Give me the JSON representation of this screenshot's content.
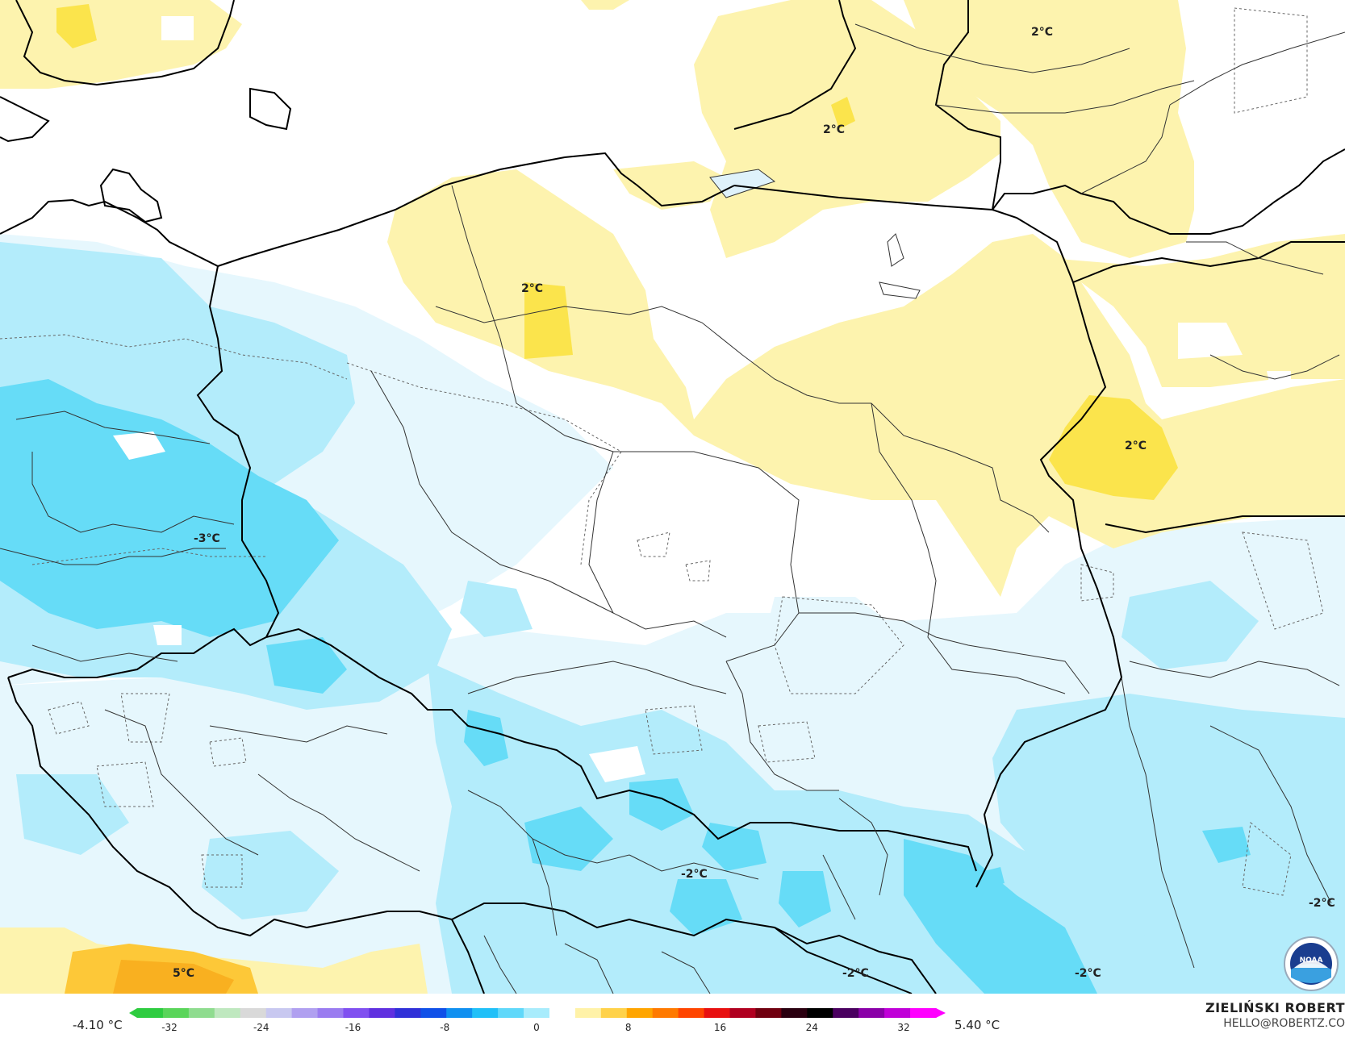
{
  "map": {
    "labels": [
      {
        "id": "lbl-nw-neg3",
        "text": "-3°C"
      },
      {
        "id": "lbl-pomerania-2",
        "text": "2°C"
      },
      {
        "id": "lbl-kaliningrad-2",
        "text": "2°C"
      },
      {
        "id": "lbl-lithuania-2",
        "text": "2°C"
      },
      {
        "id": "lbl-belarus-2",
        "text": "2°C"
      },
      {
        "id": "lbl-sw-5",
        "text": "5°C"
      },
      {
        "id": "lbl-carpath-neg2",
        "text": "-2°C"
      },
      {
        "id": "lbl-hungary-neg2",
        "text": "-2°C"
      },
      {
        "id": "lbl-ukr-neg2",
        "text": "-2°C"
      },
      {
        "id": "lbl-east-neg2",
        "text": "-2°C"
      }
    ]
  },
  "legend": {
    "min_value": "-4.10 °C",
    "max_value": "5.40 °C",
    "ticks": [
      "-32",
      "-24",
      "-16",
      "-8",
      "0",
      "8",
      "16",
      "24",
      "32"
    ],
    "colors": [
      "#2ecc40",
      "#5ad55a",
      "#8fdc8f",
      "#bfe8bf",
      "#d9d9d9",
      "#c8c8f0",
      "#b0a0f0",
      "#9a7cf0",
      "#8050f0",
      "#6030e0",
      "#3030d8",
      "#1050e8",
      "#1090f0",
      "#20c0f8",
      "#60d8fa",
      "#a8ecfc",
      "#ffffff",
      "#fff2a8",
      "#ffd24a",
      "#ffa500",
      "#ff7a00",
      "#ff4500",
      "#e81010",
      "#b00020",
      "#700010",
      "#2a0010",
      "#000000",
      "#4a0060",
      "#8a00a8",
      "#c000d8",
      "#ff00ff"
    ]
  },
  "brand": {
    "name": "ZIELIŃSKI ROBERT",
    "email": "HELLO@ROBERTZ.CO",
    "logo_text": "NOAA"
  }
}
